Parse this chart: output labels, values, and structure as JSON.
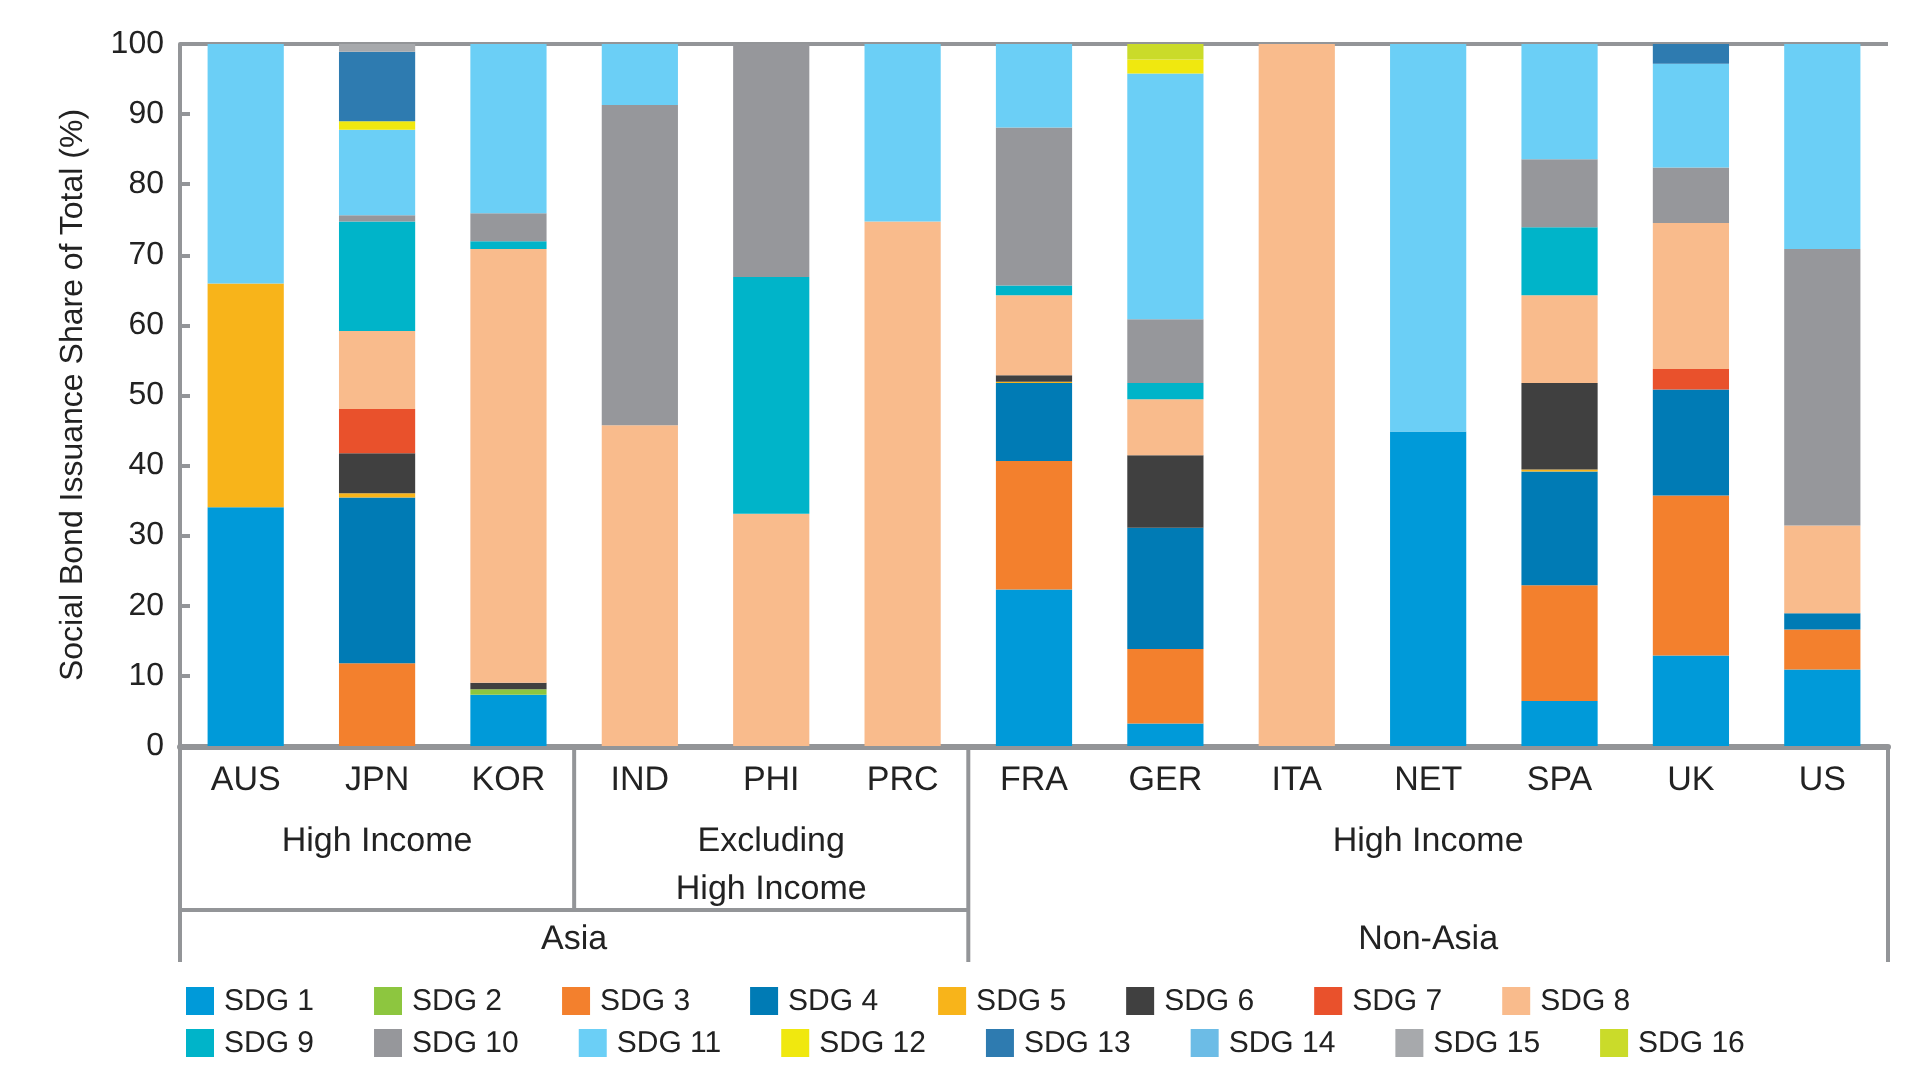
{
  "chart_data": {
    "type": "bar",
    "stacked": true,
    "ylabel": "Social Bond Issuance Share of Total (%)",
    "categories": [
      "AUS",
      "JPN",
      "KOR",
      "IND",
      "PHI",
      "PRC",
      "FRA",
      "GER",
      "ITA",
      "NET",
      "SPA",
      "UK",
      "US"
    ],
    "annotations": [
      "High Income",
      "Excluding\nHigh Income",
      "High Income",
      "Asia",
      "Non-Asia"
    ],
    "ylim": [
      0,
      100
    ],
    "yticks": [
      0,
      10,
      20,
      30,
      40,
      50,
      60,
      70,
      80,
      90,
      100
    ],
    "grid": false,
    "legend": "bottom",
    "series": [
      {
        "name": "SDG 1",
        "color": "#009ad9",
        "values": [
          34,
          0,
          7.3,
          0,
          0,
          0,
          22.3,
          3.2,
          0,
          44.8,
          6.4,
          12.9,
          10.9
        ]
      },
      {
        "name": "SDG 2",
        "color": "#8dc63f",
        "values": [
          0,
          0,
          0.8,
          0,
          0,
          0,
          0,
          0,
          0,
          0,
          0,
          0,
          0
        ]
      },
      {
        "name": "SDG 3",
        "color": "#f3802d",
        "values": [
          0,
          11.8,
          0,
          0,
          0,
          0,
          18.3,
          10.6,
          0,
          0,
          16.5,
          22.8,
          5.7
        ]
      },
      {
        "name": "SDG 4",
        "color": "#007bb5",
        "values": [
          0,
          23.6,
          0,
          0,
          0,
          0,
          11.1,
          17.3,
          0,
          0,
          16.2,
          15.1,
          2.3
        ]
      },
      {
        "name": "SDG 5",
        "color": "#f8b41a",
        "values": [
          31.9,
          0.6,
          0,
          0,
          0,
          0,
          0.2,
          0,
          0,
          0,
          0.3,
          0,
          0
        ]
      },
      {
        "name": "SDG 6",
        "color": "#404040",
        "values": [
          0,
          5.7,
          0.9,
          0,
          0,
          0,
          0.9,
          10.3,
          0,
          0,
          12.3,
          0,
          0
        ]
      },
      {
        "name": "SDG 7",
        "color": "#e9512c",
        "values": [
          0,
          6.3,
          0,
          0,
          0,
          0,
          0,
          0,
          0,
          0,
          0,
          2.9,
          0
        ]
      },
      {
        "name": "SDG 8",
        "color": "#f9bb8c",
        "values": [
          0,
          11.1,
          61.8,
          45.7,
          33.1,
          74.7,
          11.4,
          8,
          100,
          0,
          12.5,
          20.8,
          12.5
        ]
      },
      {
        "name": "SDG 9",
        "color": "#00b4c9",
        "values": [
          0,
          15.6,
          1.1,
          0,
          33.7,
          0,
          1.4,
          2.3,
          0,
          0,
          9.7,
          0,
          0
        ]
      },
      {
        "name": "SDG 10",
        "color": "#96979b",
        "values": [
          0,
          0.9,
          4,
          45.6,
          33.2,
          0,
          22.5,
          9.1,
          0,
          0,
          9.7,
          7.9,
          39.4
        ]
      },
      {
        "name": "SDG 11",
        "color": "#6bcff6",
        "values": [
          34.1,
          12.2,
          24.1,
          8.7,
          0,
          25.3,
          11.9,
          35,
          0,
          55.2,
          16.4,
          14.8,
          29.2
        ]
      },
      {
        "name": "SDG 12",
        "color": "#f0e80f",
        "values": [
          0,
          1.2,
          0,
          0,
          0,
          0,
          0,
          2,
          0,
          0,
          0,
          0,
          0
        ]
      },
      {
        "name": "SDG 13",
        "color": "#2e7bb0",
        "values": [
          0,
          9.9,
          0,
          0,
          0,
          0,
          0,
          0,
          0,
          0,
          0,
          2.8,
          0
        ]
      },
      {
        "name": "SDG 14",
        "color": "#6cbce6",
        "values": [
          0,
          0,
          0,
          0,
          0,
          0,
          0,
          0,
          0,
          0,
          0,
          0,
          0
        ]
      },
      {
        "name": "SDG 15",
        "color": "#a7a9ac",
        "values": [
          0,
          1.1,
          0,
          0,
          0,
          0,
          0,
          0,
          0,
          0,
          0,
          0,
          0
        ]
      },
      {
        "name": "SDG 16",
        "color": "#cadb2a",
        "values": [
          0,
          0,
          0,
          0,
          0,
          0,
          0,
          2.2,
          0,
          0,
          0,
          0,
          0
        ]
      }
    ]
  }
}
